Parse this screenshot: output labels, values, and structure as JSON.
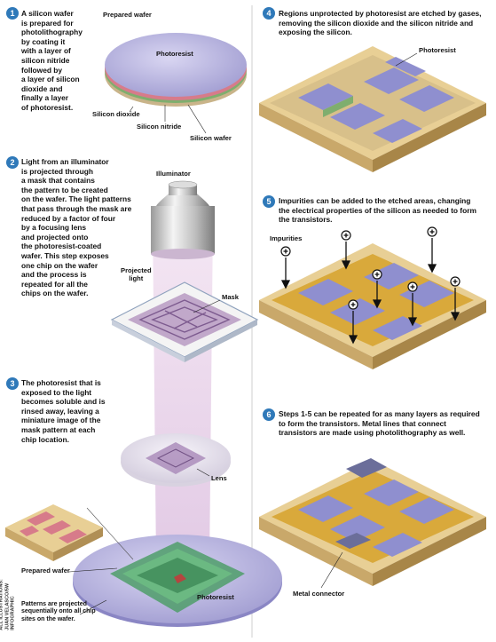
{
  "steps": [
    {
      "number": "1",
      "text": "A silicon wafer\nis prepared for\nphotolithography\nby coating it\nwith a layer of\nsilicon nitride\nfollowed by\na layer of silicon\ndioxide and\nfinally a layer\nof photoresist."
    },
    {
      "number": "2",
      "text": "Light from an illuminator\nis projected through\na mask that contains\nthe pattern to be created\non the wafer. The light patterns\nthat pass through the mask are\nreduced by a factor of four\nby a focusing lens\nand projected onto\nthe photoresist-coated\nwafer. This step exposes\none chip on the wafer\nand the process is\nrepeated for all the\nchips on the wafer."
    },
    {
      "number": "3",
      "text": "The photoresist that is\nexposed to the light\nbecomes soluble and is\nrinsed away, leaving a\nminiature image of the\nmask pattern at each\nchip location."
    },
    {
      "number": "4",
      "text": "Regions unprotected by photoresist are etched by gases,\nremoving the silicon dioxide and the silicon nitride and\nexposing the silicon."
    },
    {
      "number": "5",
      "text": "Impurities can be added to the etched areas, changing\nthe electrical properties of the silicon as needed to form\nthe transistors."
    },
    {
      "number": "6",
      "text": "Steps 1-5 can be repeated for as many layers as required\nto form the transistors. Metal lines that connect\ntransistors are made using photolithography as well."
    }
  ],
  "labels": {
    "prepared_wafer_top": "Prepared wafer",
    "photoresist_top": "Photoresist",
    "silicon_dioxide": "Silicon dioxide",
    "silicon_nitride": "Silicon nitride",
    "silicon_wafer": "Silicon wafer",
    "illuminator": "Illuminator",
    "projected_light": "Projected\nlight",
    "mask": "Mask",
    "lens": "Lens",
    "prepared_wafer_bottom": "Prepared wafer",
    "photoresist_bottom": "Photoresist",
    "patterns_note": "Patterns are projected\nsequentially onto all chip\nsites on the wafer.",
    "photoresist_step4": "Photoresist",
    "impurities": "Impurities",
    "metal_connector": "Metal connector"
  },
  "credit": "ALL ILLUSTRATIONS:\nJUAN VELASCO/5W INFOGRAPHIC",
  "colors": {
    "badge": "#2f79b9",
    "photoresist": "#8f8fcf",
    "silicon": "#e8cf95",
    "etched": "#d9a93b",
    "oxide": "#d77b8a",
    "nitride": "#7fae6e",
    "beam": "#e6cde8"
  }
}
